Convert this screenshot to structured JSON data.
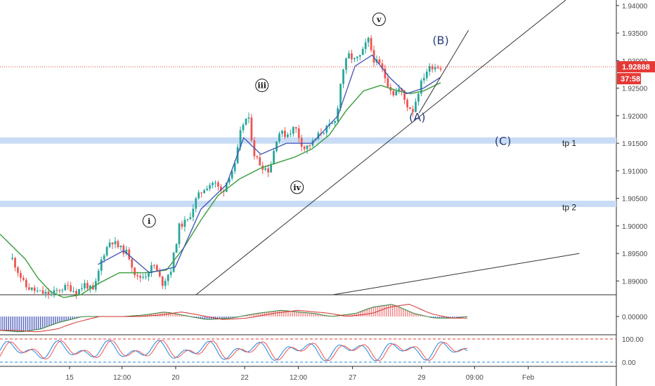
{
  "chart_data": {
    "type": "candlestick",
    "price_axis": {
      "ticks": [
        "1.94000",
        "1.93500",
        "1.93000",
        "1.92500",
        "1.92000",
        "1.91500",
        "1.91000",
        "1.90500",
        "1.90000",
        "1.89500",
        "1.89000"
      ],
      "tick_values": [
        1.94,
        1.935,
        1.93,
        1.925,
        1.92,
        1.915,
        1.91,
        1.905,
        1.9,
        1.895,
        1.89
      ],
      "range": [
        1.8875,
        1.941
      ]
    },
    "time_axis": {
      "labels": [
        "15",
        "12:00",
        "20",
        "22",
        "12:00",
        "27",
        "29",
        "09:00",
        "Feb"
      ],
      "label_fraction": [
        0.113,
        0.198,
        0.285,
        0.397,
        0.484,
        0.572,
        0.684,
        0.77,
        0.857
      ]
    },
    "current_price": {
      "label": "1.92888",
      "value": 1.92888,
      "color": "#e53935"
    },
    "countdown": "37:58",
    "close_path": [
      [
        0.0,
        1.894
      ],
      [
        0.03,
        1.889
      ],
      [
        0.06,
        1.888
      ],
      [
        0.09,
        1.8875
      ],
      [
        0.11,
        1.8885
      ],
      [
        0.13,
        1.889
      ],
      [
        0.15,
        1.888
      ],
      [
        0.17,
        1.8895
      ],
      [
        0.19,
        1.888
      ],
      [
        0.21,
        1.8945
      ],
      [
        0.23,
        1.8975
      ],
      [
        0.25,
        1.896
      ],
      [
        0.27,
        1.895
      ],
      [
        0.29,
        1.8905
      ],
      [
        0.31,
        1.891
      ],
      [
        0.33,
        1.893
      ],
      [
        0.35,
        1.8895
      ],
      [
        0.37,
        1.892
      ],
      [
        0.39,
        1.9
      ],
      [
        0.41,
        1.901
      ],
      [
        0.43,
        1.905
      ],
      [
        0.45,
        1.907
      ],
      [
        0.47,
        1.908
      ],
      [
        0.49,
        1.906
      ],
      [
        0.505,
        1.909
      ],
      [
        0.52,
        1.911
      ],
      [
        0.535,
        1.918
      ],
      [
        0.55,
        1.92
      ],
      [
        0.565,
        1.913
      ],
      [
        0.58,
        1.911
      ],
      [
        0.6,
        1.91
      ],
      [
        0.62,
        1.917
      ],
      [
        0.64,
        1.9165
      ],
      [
        0.66,
        1.918
      ],
      [
        0.68,
        1.914
      ],
      [
        0.7,
        1.915
      ],
      [
        0.72,
        1.917
      ],
      [
        0.74,
        1.918
      ],
      [
        0.755,
        1.919
      ],
      [
        0.77,
        1.928
      ],
      [
        0.785,
        1.931
      ],
      [
        0.8,
        1.93
      ],
      [
        0.815,
        1.931
      ],
      [
        0.83,
        1.934
      ],
      [
        0.845,
        1.93
      ],
      [
        0.86,
        1.929
      ],
      [
        0.875,
        1.926
      ],
      [
        0.89,
        1.924
      ],
      [
        0.905,
        1.925
      ],
      [
        0.92,
        1.922
      ],
      [
        0.935,
        1.921
      ],
      [
        0.95,
        1.925
      ],
      [
        0.965,
        1.928
      ],
      [
        0.98,
        1.929
      ],
      [
        1.0,
        1.92888
      ]
    ],
    "fast_ma": [
      [
        0.2,
        1.893
      ],
      [
        0.26,
        1.8955
      ],
      [
        0.32,
        1.8915
      ],
      [
        0.38,
        1.8925
      ],
      [
        0.44,
        1.903
      ],
      [
        0.5,
        1.9075
      ],
      [
        0.54,
        1.916
      ],
      [
        0.58,
        1.913
      ],
      [
        0.64,
        1.915
      ],
      [
        0.7,
        1.915
      ],
      [
        0.76,
        1.92
      ],
      [
        0.8,
        1.929
      ],
      [
        0.84,
        1.931
      ],
      [
        0.88,
        1.927
      ],
      [
        0.92,
        1.924
      ],
      [
        0.96,
        1.925
      ],
      [
        1.0,
        1.927
      ]
    ],
    "slow_ma": [
      [
        0.0,
        1.8985
      ],
      [
        0.03,
        1.894
      ],
      [
        0.06,
        1.8905
      ],
      [
        0.09,
        1.888
      ],
      [
        0.12,
        1.887
      ],
      [
        0.16,
        1.8875
      ],
      [
        0.2,
        1.8895
      ],
      [
        0.25,
        1.8915
      ],
      [
        0.31,
        1.8915
      ],
      [
        0.36,
        1.892
      ],
      [
        0.4,
        1.896
      ],
      [
        0.44,
        1.901
      ],
      [
        0.48,
        1.9055
      ],
      [
        0.53,
        1.9085
      ],
      [
        0.58,
        1.9105
      ],
      [
        0.62,
        1.9115
      ],
      [
        0.66,
        1.9125
      ],
      [
        0.7,
        1.914
      ],
      [
        0.74,
        1.9165
      ],
      [
        0.78,
        1.921
      ],
      [
        0.82,
        1.9245
      ],
      [
        0.86,
        1.9255
      ],
      [
        0.9,
        1.9245
      ],
      [
        0.93,
        1.924
      ],
      [
        0.96,
        1.9245
      ],
      [
        1.0,
        1.926
      ]
    ],
    "candle_x_range": [
      0.02,
      0.715
    ],
    "zones": [
      {
        "label": "tp 1",
        "value": 1.9155
      },
      {
        "label": "tp 2",
        "value": 1.904
      }
    ],
    "wave_labels": [
      {
        "text": "i",
        "style": "circled",
        "x": 0.242,
        "y": 1.9009
      },
      {
        "text": "iii",
        "style": "circled",
        "x": 0.425,
        "y": 1.9255
      },
      {
        "text": "iv",
        "style": "circled",
        "x": 0.482,
        "y": 1.907
      },
      {
        "text": "v",
        "style": "circled",
        "x": 0.615,
        "y": 1.9375
      },
      {
        "text": "(B)",
        "style": "plain",
        "x": 0.715,
        "y": 1.933
      },
      {
        "text": "(A)",
        "style": "plain",
        "x": 0.677,
        "y": 1.919
      },
      {
        "text": "(C)",
        "style": "plain",
        "x": 0.816,
        "y": 1.9147
      }
    ],
    "trendlines": [
      {
        "from": [
          0.318,
          1.8875
        ],
        "to": [
          0.918,
          1.941
        ]
      },
      {
        "from": [
          0.68,
          1.9205
        ],
        "to": [
          0.76,
          1.9355
        ]
      },
      {
        "from": [
          0.54,
          1.8875
        ],
        "to": [
          0.94,
          1.895
        ]
      }
    ],
    "indicators": {
      "macd": {
        "tick": "0.00000"
      },
      "stochastic": {
        "ticks": [
          "100.00",
          "0.00"
        ]
      }
    },
    "colors": {
      "up": "#26a69a",
      "down": "#ef5350",
      "fast_ma": "#3f51b5",
      "slow_ma": "#43a047",
      "zone": "#c9dcf5",
      "wave": "#2a3f7a"
    }
  }
}
